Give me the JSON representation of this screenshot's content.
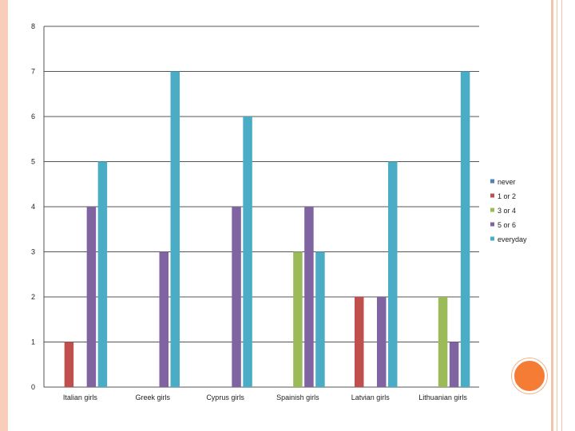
{
  "chart_data": {
    "type": "bar",
    "categories": [
      "Italian girls",
      "Greek girls",
      "Cyprus girls",
      "Spainish girls",
      "Latvian girls",
      "Lithuanian girls"
    ],
    "series": [
      {
        "name": "never",
        "color": "#4f81bd",
        "values": [
          0,
          0,
          0,
          0,
          0,
          0
        ]
      },
      {
        "name": "1 or 2",
        "color": "#c0504d",
        "values": [
          1,
          0,
          0,
          0,
          2,
          0
        ]
      },
      {
        "name": "3 or 4",
        "color": "#9bbb59",
        "values": [
          0,
          0,
          0,
          3,
          0,
          2
        ]
      },
      {
        "name": "5 or 6",
        "color": "#8064a2",
        "values": [
          4,
          3,
          4,
          4,
          2,
          1
        ]
      },
      {
        "name": "everyday",
        "color": "#4bacc6",
        "values": [
          5,
          7,
          6,
          3,
          5,
          7
        ]
      }
    ],
    "ylim": [
      0,
      8
    ],
    "yticks": [
      "0",
      "1",
      "2",
      "3",
      "4",
      "5",
      "6",
      "7",
      "8"
    ],
    "grid": true,
    "legend": "right"
  }
}
